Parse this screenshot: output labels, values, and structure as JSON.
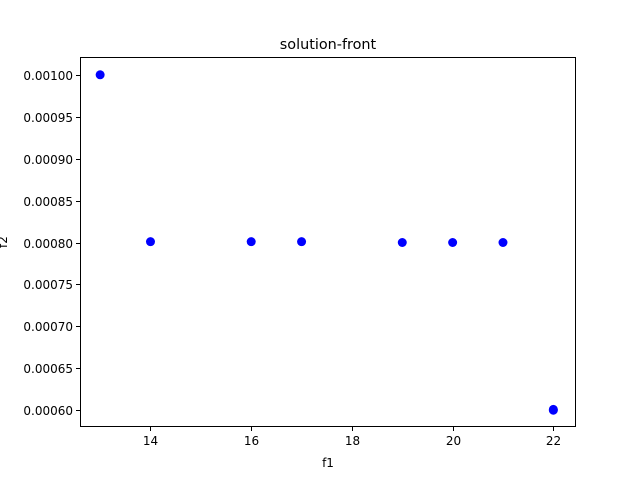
{
  "chart_data": {
    "type": "scatter",
    "title": "solution-front",
    "xlabel": "f1",
    "ylabel": "f2",
    "xlim": [
      12.6,
      22.45
    ],
    "ylim": [
      0.00058,
      0.00102
    ],
    "x_ticks": [
      14,
      16,
      18,
      20,
      22
    ],
    "y_ticks": [
      0.0006,
      0.00065,
      0.0007,
      0.00075,
      0.0008,
      0.00085,
      0.0009,
      0.00095,
      0.001
    ],
    "y_tick_decimals": 5,
    "grid": false,
    "marker_color": "#0000ff",
    "points": [
      {
        "x": 13,
        "y": 0.001
      },
      {
        "x": 14,
        "y": 0.000801
      },
      {
        "x": 16,
        "y": 0.000801
      },
      {
        "x": 17,
        "y": 0.000801
      },
      {
        "x": 19,
        "y": 0.0008
      },
      {
        "x": 20,
        "y": 0.0008
      },
      {
        "x": 21,
        "y": 0.0008
      },
      {
        "x": 22,
        "y": 0.0006
      },
      {
        "x": 22,
        "y": 0.000601
      }
    ]
  }
}
